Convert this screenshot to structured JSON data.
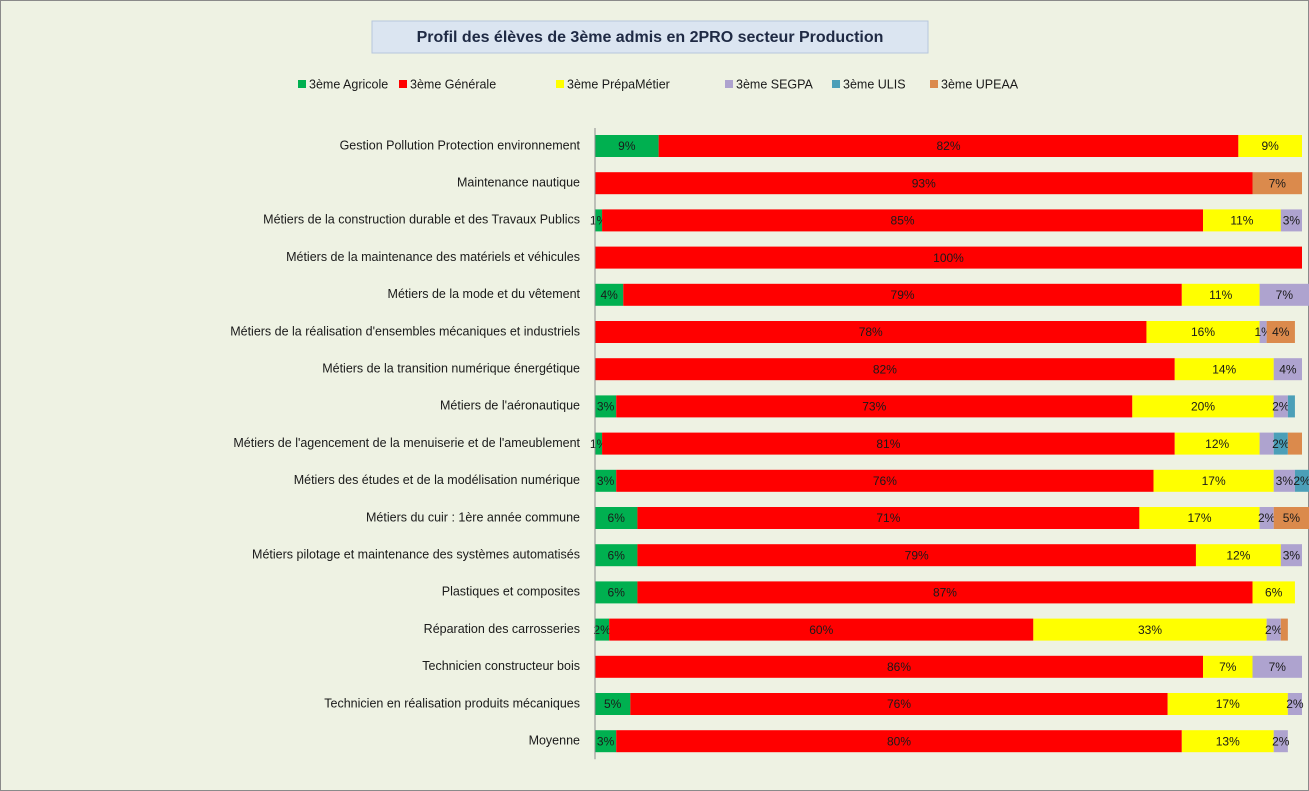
{
  "chart_data": {
    "type": "stacked-bar-horizontal",
    "title": "Profil des élèves de 3ème admis en 2PRO secteur Production",
    "xlim": [
      0,
      100
    ],
    "categories": [
      "Gestion Pollution Protection environnement",
      "Maintenance nautique",
      "Métiers de la construction durable et des Travaux Publics",
      "Métiers de la maintenance des matériels et véhicules",
      "Métiers de la mode et du vêtement",
      "Métiers de la réalisation  d'ensembles mécaniques et industriels",
      "Métiers de la transition numérique énergétique",
      "Métiers de l'aéronautique",
      "Métiers de l'agencement de la menuiserie et de l'ameublement",
      "Métiers des études et de la modélisation numérique",
      "Métiers du cuir : 1ère année commune",
      "Métiers pilotage et maintenance des systèmes automatisés",
      "Plastiques et composites",
      "Réparation des carrosseries",
      "Technicien constructeur bois",
      "Technicien en réalisation produits mécaniques",
      "Moyenne"
    ],
    "series": [
      {
        "name": "3ème Agricole",
        "color": "#00b050",
        "values": [
          9,
          null,
          1,
          null,
          4,
          null,
          null,
          3,
          1,
          3,
          6,
          6,
          6,
          2,
          null,
          5,
          3
        ],
        "value_labels": [
          "9%",
          null,
          "1%",
          null,
          "4%",
          null,
          null,
          "3%",
          "1%",
          "3%",
          "6%",
          "6%",
          "6%",
          "2%",
          null,
          "5%",
          "3%"
        ]
      },
      {
        "name": "3ème Générale",
        "color": "#ff0000",
        "values": [
          82,
          93,
          85,
          100,
          79,
          78,
          82,
          73,
          81,
          76,
          71,
          79,
          87,
          60,
          86,
          76,
          80
        ],
        "value_labels": [
          "82%",
          "93%",
          "85%",
          "100%",
          "79%",
          "78%",
          "82%",
          "73%",
          "81%",
          "76%",
          "71%",
          "79%",
          "87%",
          "60%",
          "86%",
          "76%",
          "80%"
        ]
      },
      {
        "name": "3ème PrépaMétier",
        "color": "#ffff00",
        "values": [
          9,
          null,
          11,
          null,
          11,
          16,
          14,
          20,
          12,
          17,
          17,
          12,
          6,
          33,
          7,
          17,
          13
        ],
        "value_labels": [
          "9%",
          null,
          "11%",
          null,
          "11%",
          "16%",
          "14%",
          "20%",
          "12%",
          "17%",
          "17%",
          "12%",
          "6%",
          "33%",
          "7%",
          "17%",
          "13%"
        ]
      },
      {
        "name": "3ème SEGPA",
        "color": "#aea3cf",
        "values": [
          null,
          null,
          3,
          null,
          7,
          1,
          4,
          2,
          2,
          3,
          2,
          3,
          null,
          2,
          7,
          2,
          2
        ],
        "value_labels": [
          null,
          null,
          "3%",
          null,
          "7%",
          "1%",
          "4%",
          "2%",
          null,
          "3%",
          "2%",
          "3%",
          null,
          "2%",
          "7%",
          "2%",
          "2%"
        ]
      },
      {
        "name": "3ème ULIS",
        "color": "#4b9fb8",
        "values": [
          null,
          null,
          null,
          null,
          null,
          null,
          null,
          1,
          2,
          2,
          null,
          null,
          null,
          null,
          null,
          null,
          null
        ],
        "value_labels": [
          null,
          null,
          null,
          null,
          null,
          null,
          null,
          null,
          "2%",
          "2%",
          null,
          null,
          null,
          null,
          null,
          null,
          null
        ]
      },
      {
        "name": "3ème UPEAA",
        "color": "#db8a4c",
        "values": [
          null,
          7,
          null,
          null,
          null,
          4,
          null,
          null,
          2,
          null,
          5,
          null,
          null,
          1,
          null,
          null,
          null
        ],
        "value_labels": [
          null,
          "7%",
          null,
          null,
          null,
          "4%",
          null,
          null,
          null,
          null,
          "5%",
          null,
          null,
          null,
          null,
          null,
          null
        ]
      }
    ]
  }
}
